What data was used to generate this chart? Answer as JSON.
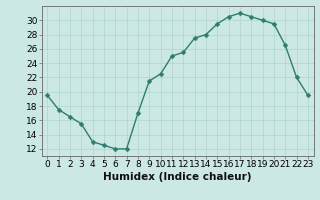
{
  "x": [
    0,
    1,
    2,
    3,
    4,
    5,
    6,
    7,
    8,
    9,
    10,
    11,
    12,
    13,
    14,
    15,
    16,
    17,
    18,
    19,
    20,
    21,
    22,
    23
  ],
  "y": [
    19.5,
    17.5,
    16.5,
    15.5,
    13.0,
    12.5,
    12.0,
    12.0,
    17.0,
    21.5,
    22.5,
    25.0,
    25.5,
    27.5,
    28.0,
    29.5,
    30.5,
    31.0,
    30.5,
    30.0,
    29.5,
    26.5,
    22.0,
    19.5
  ],
  "line_color": "#2e7d6e",
  "marker_color": "#2e7d6e",
  "bg_color": "#cce8e4",
  "grid_color": "#afd4cf",
  "xlabel": "Humidex (Indice chaleur)",
  "xlim": [
    -0.5,
    23.5
  ],
  "ylim": [
    11,
    32
  ],
  "yticks": [
    12,
    14,
    16,
    18,
    20,
    22,
    24,
    26,
    28,
    30
  ],
  "xticks": [
    0,
    1,
    2,
    3,
    4,
    5,
    6,
    7,
    8,
    9,
    10,
    11,
    12,
    13,
    14,
    15,
    16,
    17,
    18,
    19,
    20,
    21,
    22,
    23
  ],
  "tick_fontsize": 6.5,
  "xlabel_fontsize": 7.5,
  "linewidth": 1.0,
  "markersize": 2.5
}
